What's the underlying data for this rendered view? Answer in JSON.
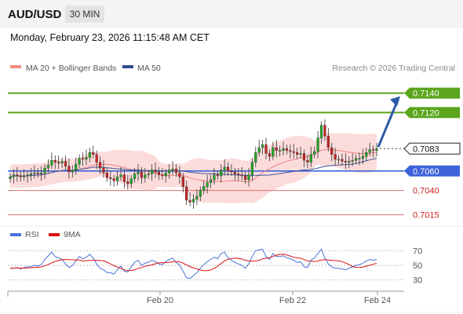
{
  "header": {
    "symbol": "AUD/USD",
    "timeframe": "30 MIN",
    "datetime": "Monday, February 23, 2026 11:15:48 AM CET"
  },
  "legend": {
    "items": [
      {
        "label": "MA 20 + Bollinger Bands",
        "color": "#f28b82"
      },
      {
        "label": "MA 50",
        "color": "#2d4b8c"
      }
    ],
    "credit": "Research © 2026 Trading Central"
  },
  "colors": {
    "up_candle": "#22a822",
    "down_candle": "#cc2222",
    "resistance_line": "#5aa51c",
    "pivot_line": "#3d62d9",
    "support_line": "#e07070",
    "forecast_arrow": "#2b5aa5",
    "band_fill": "#fbd0cf",
    "ma20": "#f08080",
    "ma50": "#3a5a9a",
    "rsi": "#4a72d8",
    "rsi_ma": "#dd1111"
  },
  "chart_data": [
    {
      "type": "candlestick",
      "title": "AUD/USD",
      "timeframe": "30 MIN",
      "x_ticks": [
        "Feb 20",
        "Feb 22",
        "Feb 24"
      ],
      "ylim": [
        0.7005,
        0.7155
      ],
      "series_close": [
        0.7054,
        0.7056,
        0.7055,
        0.7054,
        0.7055,
        0.7056,
        0.7057,
        0.7058,
        0.7057,
        0.7058,
        0.7063,
        0.7066,
        0.7071,
        0.7069,
        0.7068,
        0.707,
        0.7065,
        0.7059,
        0.7061,
        0.7067,
        0.7073,
        0.7072,
        0.7074,
        0.7079,
        0.7077,
        0.7069,
        0.7063,
        0.7058,
        0.7053,
        0.7052,
        0.705,
        0.7054,
        0.7056,
        0.7049,
        0.7047,
        0.7052,
        0.7057,
        0.7059,
        0.7053,
        0.7056,
        0.7057,
        0.7061,
        0.7059,
        0.7056,
        0.7055,
        0.7058,
        0.7061,
        0.7062,
        0.7058,
        0.7054,
        0.7044,
        0.703,
        0.7028,
        0.7031,
        0.7034,
        0.704,
        0.7044,
        0.7048,
        0.7051,
        0.7056,
        0.7055,
        0.7061,
        0.7064,
        0.706,
        0.7059,
        0.7057,
        0.7056,
        0.7055,
        0.7051,
        0.7056,
        0.7069,
        0.7079,
        0.7084,
        0.7087,
        0.7078,
        0.7075,
        0.7084,
        0.7081,
        0.7081,
        0.7083,
        0.7081,
        0.708,
        0.7079,
        0.7077,
        0.7078,
        0.7071,
        0.7069,
        0.7077,
        0.708,
        0.7094,
        0.7107,
        0.7096,
        0.7084,
        0.7077,
        0.7072,
        0.7072,
        0.707,
        0.7069,
        0.707,
        0.7071,
        0.7073,
        0.7073,
        0.7075,
        0.7079,
        0.7082,
        0.7081,
        0.7083
      ],
      "levels": [
        {
          "label": "0.7140",
          "value": 0.714,
          "kind": "resistance"
        },
        {
          "label": "0.7120",
          "value": 0.712,
          "kind": "resistance"
        },
        {
          "label": "0.7083",
          "value": 0.7083,
          "kind": "last_price"
        },
        {
          "label": "0.7060",
          "value": 0.706,
          "kind": "pivot"
        },
        {
          "label": "0.7040",
          "value": 0.704,
          "kind": "support"
        },
        {
          "label": "0.7015",
          "value": 0.7015,
          "kind": "support"
        }
      ],
      "indicators": [
        "MA 20 + Bollinger Bands",
        "MA 50"
      ],
      "forecast_arrow_target": 0.714
    },
    {
      "type": "line",
      "series": [
        {
          "name": "RSI",
          "color": "#4a72d8"
        },
        {
          "name": "9MA",
          "color": "#dd1111"
        }
      ],
      "ylim": [
        20,
        80
      ],
      "y_ticks": [
        "70",
        "50",
        "30"
      ],
      "rsi_values": [
        46,
        46,
        47,
        45,
        47,
        48,
        48,
        50,
        49,
        51,
        58,
        63,
        68,
        62,
        60,
        58,
        52,
        47,
        50,
        56,
        62,
        59,
        61,
        65,
        60,
        52,
        46,
        44,
        40,
        40,
        38,
        44,
        49,
        42,
        41,
        48,
        54,
        57,
        50,
        53,
        54,
        57,
        55,
        52,
        51,
        55,
        58,
        60,
        54,
        50,
        42,
        33,
        32,
        36,
        40,
        46,
        51,
        55,
        58,
        61,
        59,
        66,
        68,
        60,
        57,
        54,
        52,
        50,
        46,
        52,
        62,
        70,
        71,
        72,
        62,
        58,
        66,
        62,
        62,
        63,
        60,
        59,
        57,
        54,
        55,
        48,
        47,
        57,
        60,
        66,
        72,
        60,
        52,
        48,
        46,
        46,
        45,
        44,
        46,
        48,
        50,
        51,
        53,
        56,
        58,
        57,
        58
      ]
    }
  ]
}
